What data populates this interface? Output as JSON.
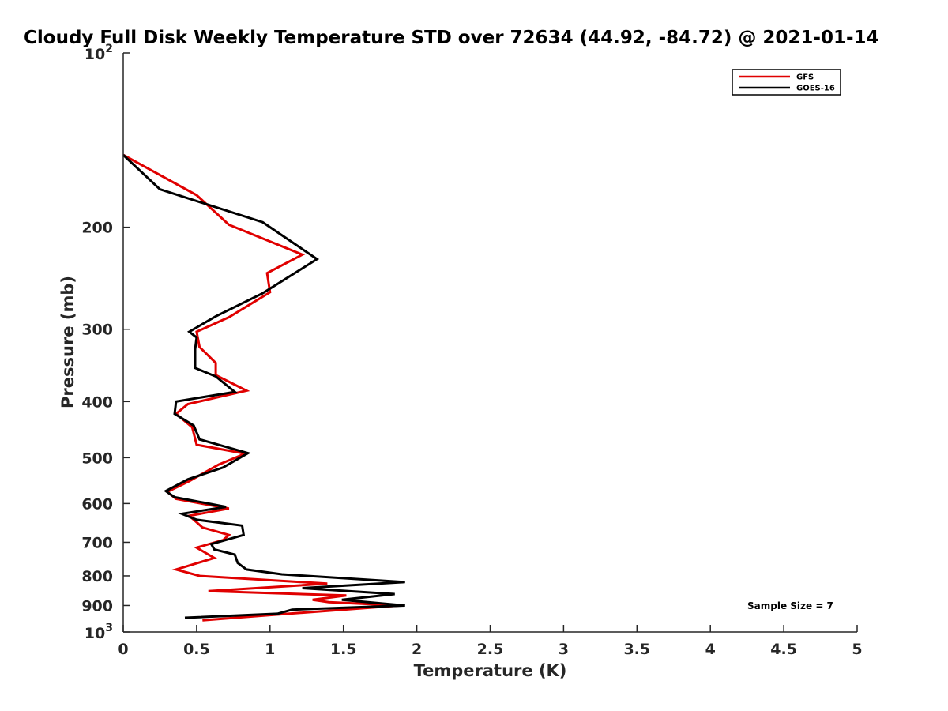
{
  "chart_data": {
    "type": "line",
    "title": "Cloudy Full Disk Weekly Temperature STD over 72634 (44.92, -84.72) @ 2021-01-14",
    "xlabel": "Temperature (K)",
    "ylabel": "Pressure (mb)",
    "xlim": [
      0,
      5
    ],
    "ylim": [
      100,
      1000
    ],
    "y_scale": "log",
    "y_reversed": true,
    "x_ticks": [
      0,
      0.5,
      1,
      1.5,
      2,
      2.5,
      3,
      3.5,
      4,
      4.5,
      5
    ],
    "x_tick_labels": [
      "0",
      "0.5",
      "1",
      "1.5",
      "2",
      "2.5",
      "3",
      "3.5",
      "4",
      "4.5",
      "5"
    ],
    "y_ticks": [
      200,
      300,
      400,
      500,
      600,
      700,
      800,
      900
    ],
    "y_tick_labels": [
      "200",
      "300",
      "400",
      "500",
      "600",
      "700",
      "800",
      "900"
    ],
    "y_decade_labels": [
      {
        "value": 100,
        "base": "10",
        "exp": "2"
      },
      {
        "value": 1000,
        "base": "10",
        "exp": "3"
      }
    ],
    "grid": false,
    "legend_position": "top-right",
    "annotation": "Sample Size = 7",
    "series": [
      {
        "name": "GFS",
        "color": "#e00000",
        "x": [
          0.0,
          0.5,
          0.72,
          1.22,
          0.98,
          1.0,
          0.72,
          0.5,
          0.52,
          0.63,
          0.63,
          0.84,
          0.44,
          0.36,
          0.47,
          0.5,
          0.83,
          0.65,
          0.45,
          0.3,
          0.36,
          0.72,
          0.45,
          0.54,
          0.72,
          0.68,
          0.5,
          0.62,
          0.36,
          0.52,
          1.39,
          0.58,
          1.52,
          1.29,
          1.4,
          1.88,
          1.0,
          0.54
        ],
        "y": [
          150,
          176,
          198,
          223,
          240,
          259,
          286,
          303,
          322,
          343,
          360,
          383,
          404,
          420,
          443,
          475,
          492,
          514,
          549,
          573,
          589,
          612,
          630,
          660,
          680,
          694,
          715,
          745,
          780,
          800,
          825,
          850,
          865,
          880,
          888,
          900,
          935,
          955
        ]
      },
      {
        "name": "GOES-16",
        "color": "#000000",
        "x": [
          0.0,
          0.25,
          0.95,
          1.32,
          0.95,
          0.63,
          0.45,
          0.5,
          0.49,
          0.49,
          0.63,
          0.76,
          0.36,
          0.35,
          0.48,
          0.52,
          0.85,
          0.68,
          0.44,
          0.29,
          0.35,
          0.7,
          0.4,
          0.5,
          0.81,
          0.82,
          0.6,
          0.62,
          0.76,
          0.78,
          0.84,
          1.08,
          1.92,
          1.22,
          1.85,
          1.49,
          1.92,
          1.15,
          1.05,
          0.42
        ],
        "y": [
          150,
          172,
          196,
          227,
          260,
          285,
          303,
          310,
          325,
          350,
          362,
          385,
          400,
          420,
          440,
          465,
          491,
          520,
          545,
          571,
          585,
          608,
          625,
          640,
          655,
          680,
          705,
          720,
          735,
          760,
          780,
          795,
          820,
          840,
          860,
          880,
          900,
          915,
          930,
          945
        ]
      }
    ]
  }
}
